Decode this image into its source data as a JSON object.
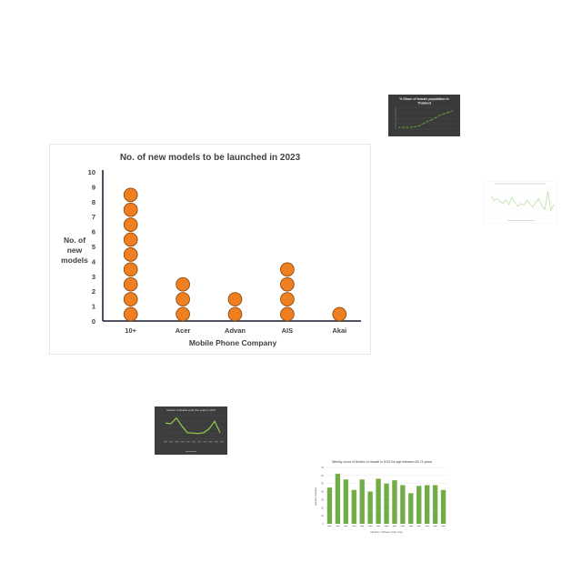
{
  "chart_data": [
    {
      "type": "dot",
      "title": "No. of new models to be launched in 2023",
      "xlabel": "Mobile Phone Company",
      "ylabel": [
        "No. of",
        "new",
        "models"
      ],
      "categories": [
        "10+",
        "Acer",
        "Advan",
        "AIS",
        "Akai"
      ],
      "values": [
        9,
        3,
        2,
        4,
        1
      ],
      "yticks": [
        0,
        1,
        2,
        3,
        4,
        5,
        6,
        7,
        8,
        9,
        10
      ],
      "ylim": [
        0,
        10
      ],
      "marker_color": "#f07f21",
      "marker_stroke": "#8a4b12",
      "axis_color": "#3a3a4a"
    },
    {
      "type": "line",
      "title": "% Share of female population in Thailand",
      "values": [
        50.1,
        50.1,
        50.1,
        50.1,
        50.15,
        50.2,
        50.35,
        50.5,
        50.6,
        50.75,
        50.9,
        51.0,
        51.1,
        51.2
      ],
      "theme": "dark",
      "line_color": "#7ccf3a"
    },
    {
      "type": "line",
      "values": [
        62,
        55,
        58,
        54,
        50,
        56,
        48,
        60,
        52,
        45,
        50,
        47,
        55,
        49,
        44,
        52,
        58,
        46,
        40,
        70,
        38,
        48
      ],
      "theme": "light",
      "line_color": "#bde0a6"
    },
    {
      "type": "line",
      "title": "Number of Deaths under five years in 1970",
      "values": [
        34,
        33,
        45,
        28,
        14,
        13,
        12,
        14,
        22,
        38,
        14
      ],
      "theme": "dark",
      "line_color": "#8bc34a"
    },
    {
      "type": "bar",
      "title": "Weekly count of Deaths in Hawaii in 2015 for age between 65-74 years",
      "xlabel": "Number of Week of the Year",
      "ylabel": "number of deaths",
      "values": [
        45,
        62,
        55,
        42,
        55,
        40,
        56,
        50,
        54,
        48,
        38,
        47,
        48,
        48,
        42
      ],
      "ylim": [
        0,
        70
      ],
      "bar_color": "#70ad47"
    }
  ]
}
